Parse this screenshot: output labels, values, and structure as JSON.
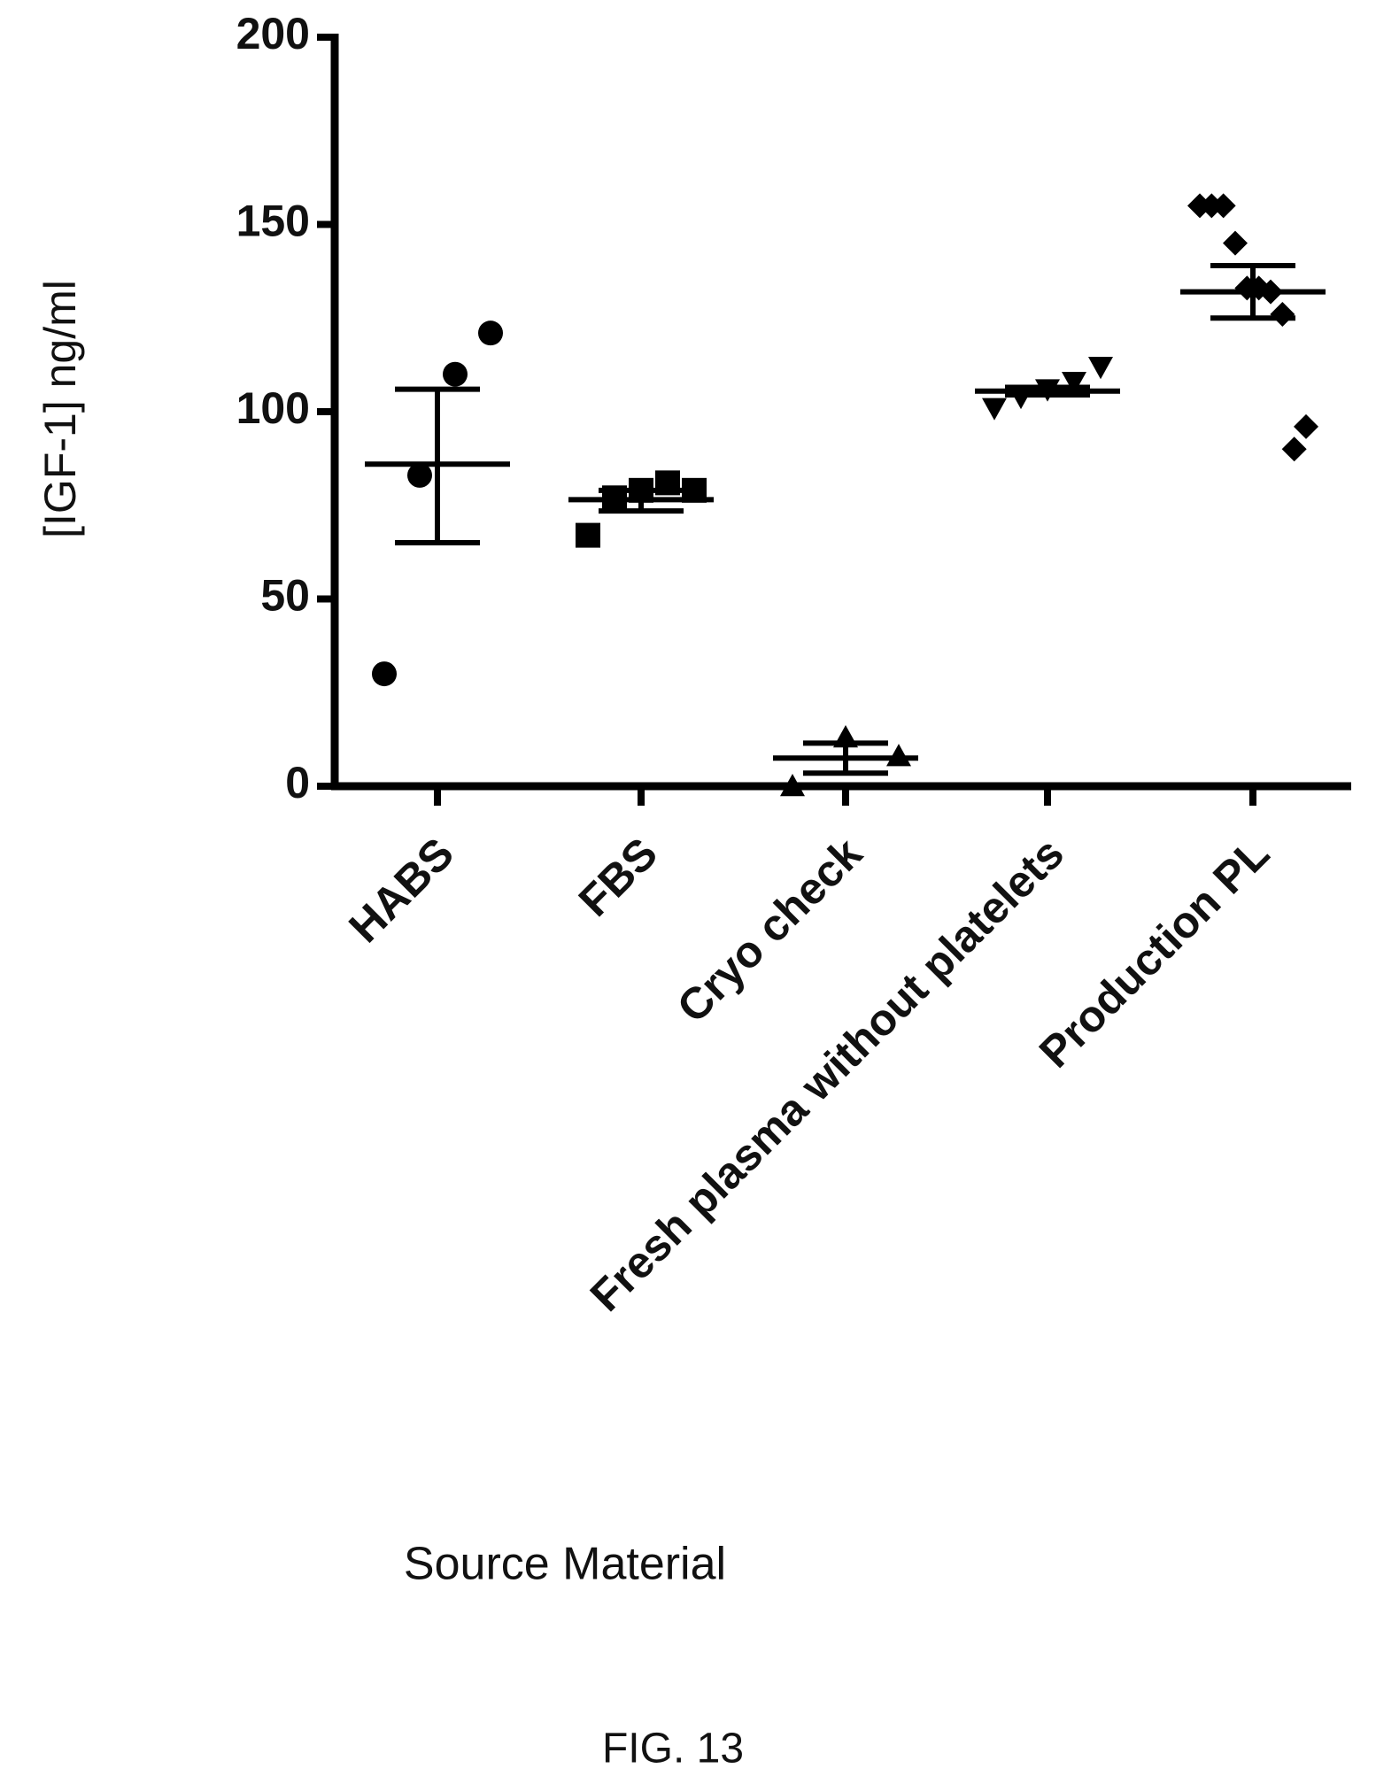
{
  "chart_data": {
    "type": "scatter",
    "xlabel": "Source Material",
    "ylabel": "[IGF-1] ng/ml",
    "ylim": [
      0,
      200
    ],
    "yticks": [
      "0",
      "50",
      "100",
      "150",
      "200"
    ],
    "grid": false,
    "legend": "none",
    "categories": [
      "HABS",
      "FBS",
      "Cryo check",
      "Fresh plasma without platelets",
      "Production PL"
    ],
    "series": [
      {
        "category": "HABS",
        "marker": "circle",
        "points": [
          30,
          83,
          110,
          121
        ],
        "mean": 86,
        "error_upper": 106,
        "error_lower": 65
      },
      {
        "category": "FBS",
        "marker": "square",
        "points": [
          67,
          77,
          79,
          81,
          79
        ],
        "mean": 76.5,
        "error_upper": 79,
        "error_lower": 73.5
      },
      {
        "category": "Cryo check",
        "marker": "triangle-up",
        "points": [
          0,
          13,
          8
        ],
        "mean": 7.5,
        "error_upper": 11.5,
        "error_lower": 3.5
      },
      {
        "category": "Fresh plasma without platelets",
        "marker": "triangle-down",
        "points": [
          101,
          104,
          106,
          108,
          112
        ],
        "mean": 105.5,
        "error_upper": 106.5,
        "error_lower": 104.5
      },
      {
        "category": "Production PL",
        "marker": "diamond",
        "points": [
          155,
          155,
          155,
          145,
          133,
          133,
          132,
          126,
          90,
          96
        ],
        "mean": 132,
        "error_upper": 139,
        "error_lower": 125
      }
    ],
    "color": "#000000"
  },
  "caption": "FIG. 13"
}
